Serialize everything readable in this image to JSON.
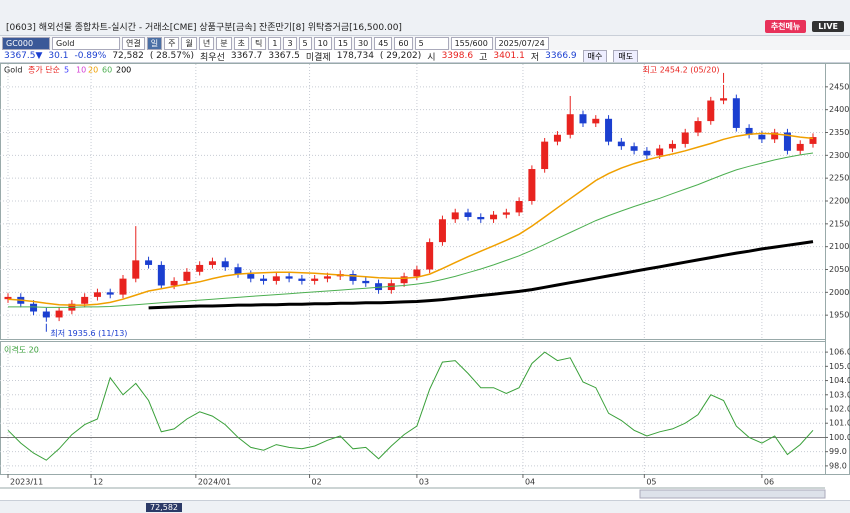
{
  "window": {
    "title": "[0603] 해외선물 종합차트-실시간 - 거래소[CME] 상품구분[금속] 잔존만기[8] 위탁증거금[16,500.00]",
    "menu_button": "추천메뉴",
    "live_button": "LIVE"
  },
  "toolbar": {
    "code": "GC000",
    "name": "Gold",
    "periods": [
      "연결",
      "일",
      "주",
      "월",
      "년",
      "분",
      "초",
      "틱"
    ],
    "intervals": [
      "1",
      "3",
      "5",
      "10",
      "15",
      "30",
      "45",
      "60"
    ],
    "count": "5",
    "range": "155/600",
    "date": "2025/07/24"
  },
  "quote": {
    "items": [
      "3367.5▼",
      "30.1",
      "-0.89%",
      "72,582",
      "( 28.57%)",
      "최우선",
      "3367.7",
      "3367.5",
      "미결제",
      "178,734",
      "( 29,202)",
      "시",
      "3398.6",
      "고",
      "3401.1",
      "저",
      "3366.9"
    ],
    "buttons": [
      "매수",
      "매도"
    ]
  },
  "status": {
    "volume": "72,582"
  },
  "chart_data": [
    {
      "type": "candlestick",
      "series_label": "Gold",
      "legend_label": "종가 단순",
      "legend_items": [
        {
          "name": "5",
          "color": "#3b3bff"
        },
        {
          "name": "10",
          "color": "#d43fd4"
        }
      ],
      "open": [
        1985,
        1990,
        1975,
        1958,
        1945,
        1960,
        1975,
        1990,
        2000,
        1995,
        2030,
        2070,
        2060,
        2015,
        2025,
        2045,
        2060,
        2068,
        2055,
        2040,
        2030,
        2025,
        2035,
        2030,
        2025,
        2030,
        2035,
        2040,
        2025,
        2020,
        2005,
        2020,
        2035,
        2050,
        2110,
        2160,
        2175,
        2165,
        2160,
        2170,
        2175,
        2200,
        2270,
        2330,
        2345,
        2390,
        2370,
        2380,
        2330,
        2320,
        2310,
        2300,
        2315,
        2325,
        2350,
        2375,
        2420,
        2425,
        2360,
        2345,
        2335,
        2350,
        2310,
        2325
      ],
      "high": [
        1998,
        1998,
        1983,
        1966,
        1968,
        1983,
        1998,
        2008,
        2008,
        2038,
        2145,
        2078,
        2068,
        2033,
        2053,
        2068,
        2076,
        2076,
        2063,
        2048,
        2038,
        2043,
        2043,
        2038,
        2038,
        2043,
        2048,
        2048,
        2033,
        2028,
        2028,
        2043,
        2058,
        2118,
        2168,
        2183,
        2183,
        2173,
        2178,
        2183,
        2208,
        2278,
        2338,
        2353,
        2430,
        2398,
        2388,
        2388,
        2338,
        2328,
        2318,
        2323,
        2333,
        2358,
        2383,
        2428,
        2454.2,
        2433,
        2368,
        2353,
        2358,
        2358,
        2333,
        2348
      ],
      "low": [
        1977,
        1967,
        1950,
        1935.6,
        1937,
        1952,
        1967,
        1982,
        1987,
        1987,
        2022,
        2052,
        2007,
        2007,
        2017,
        2037,
        2052,
        2047,
        2032,
        2022,
        2017,
        2017,
        2022,
        2017,
        2017,
        2022,
        2027,
        2017,
        2012,
        1997,
        1997,
        2012,
        2027,
        2042,
        2102,
        2152,
        2157,
        2152,
        2152,
        2162,
        2167,
        2192,
        2262,
        2322,
        2337,
        2362,
        2362,
        2322,
        2312,
        2302,
        2292,
        2292,
        2307,
        2317,
        2342,
        2367,
        2412,
        2352,
        2337,
        2327,
        2327,
        2302,
        2302,
        2317
      ],
      "close": [
        1990,
        1975,
        1958,
        1945,
        1960,
        1975,
        1990,
        2000,
        1995,
        2030,
        2070,
        2060,
        2015,
        2025,
        2045,
        2060,
        2068,
        2055,
        2040,
        2030,
        2025,
        2035,
        2030,
        2025,
        2030,
        2035,
        2040,
        2025,
        2020,
        2005,
        2020,
        2035,
        2050,
        2110,
        2160,
        2175,
        2165,
        2160,
        2170,
        2175,
        2200,
        2270,
        2330,
        2345,
        2390,
        2370,
        2380,
        2330,
        2320,
        2310,
        2300,
        2315,
        2325,
        2350,
        2375,
        2420,
        2425,
        2360,
        2345,
        2335,
        2350,
        2310,
        2325,
        2340
      ],
      "up_color": "#e8231f",
      "down_color": "#1b3fd0",
      "series": [
        {
          "name": "20",
          "color": "#f0a000",
          "width": 1.5,
          "values": [
            1985,
            1983,
            1980,
            1976,
            1973,
            1972,
            1972,
            1974,
            1978,
            1985,
            1994,
            2003,
            2008,
            2013,
            2018,
            2023,
            2030,
            2036,
            2040,
            2042,
            2043,
            2044,
            2044,
            2043,
            2042,
            2040,
            2038,
            2036,
            2034,
            2032,
            2031,
            2031,
            2033,
            2040,
            2052,
            2065,
            2078,
            2090,
            2102,
            2114,
            2127,
            2145,
            2165,
            2185,
            2205,
            2225,
            2245,
            2260,
            2272,
            2282,
            2290,
            2297,
            2303,
            2310,
            2318,
            2326,
            2335,
            2342,
            2346,
            2348,
            2347,
            2344,
            2340,
            2337
          ]
        },
        {
          "name": "60",
          "color": "#4caf50",
          "width": 1,
          "values": [
            1968,
            1968,
            1968,
            1967,
            1967,
            1967,
            1968,
            1968,
            1969,
            1971,
            1973,
            1975,
            1977,
            1979,
            1981,
            1983,
            1985,
            1987,
            1989,
            1991,
            1993,
            1995,
            1997,
            1999,
            2001,
            2003,
            2005,
            2007,
            2009,
            2011,
            2013,
            2015,
            2018,
            2022,
            2028,
            2035,
            2043,
            2051,
            2060,
            2070,
            2080,
            2092,
            2105,
            2118,
            2131,
            2144,
            2157,
            2168,
            2178,
            2188,
            2197,
            2206,
            2216,
            2226,
            2236,
            2247,
            2258,
            2268,
            2276,
            2283,
            2290,
            2296,
            2301,
            2305
          ]
        },
        {
          "name": "200",
          "color": "#000000",
          "width": 3,
          "values": [
            null,
            null,
            null,
            null,
            null,
            null,
            null,
            null,
            null,
            null,
            null,
            1966,
            1967,
            1968,
            1969,
            1970,
            1970,
            1971,
            1972,
            1972,
            1973,
            1973,
            1974,
            1974,
            1975,
            1975,
            1976,
            1976,
            1977,
            1977,
            1978,
            1979,
            1980,
            1982,
            1984,
            1987,
            1990,
            1993,
            1996,
            1999,
            2002,
            2006,
            2011,
            2016,
            2021,
            2026,
            2031,
            2036,
            2041,
            2046,
            2051,
            2056,
            2061,
            2066,
            2071,
            2076,
            2081,
            2086,
            2090,
            2095,
            2099,
            2103,
            2107,
            2111
          ]
        }
      ],
      "ylim": [
        1900,
        2500
      ],
      "yticks": [
        1950,
        2000,
        2050,
        2100,
        2150,
        2200,
        2250,
        2300,
        2350,
        2400,
        2450
      ],
      "xticks": [
        {
          "value": 0,
          "label": "2023/11"
        },
        {
          "value": 6.5,
          "label": "12"
        },
        {
          "value": 14.7,
          "label": "2024/01"
        },
        {
          "value": 23.6,
          "label": "02"
        },
        {
          "value": 32,
          "label": "03"
        },
        {
          "value": 40.3,
          "label": "04"
        },
        {
          "value": 49.8,
          "label": "05"
        },
        {
          "value": 59,
          "label": "06"
        }
      ],
      "grid": true,
      "annotations": [
        {
          "text": "최고 2454.2 (05/20)",
          "x": 56,
          "y": 2454.2
        },
        {
          "text": "최저 1935.6 (11/13)",
          "x": 3,
          "y": 1935.6
        }
      ]
    },
    {
      "type": "line",
      "title": "이격도 20",
      "color": "#3aa03a",
      "baseline": 100,
      "values": [
        100.5,
        99.6,
        98.9,
        98.4,
        99.2,
        100.2,
        100.9,
        101.3,
        104.2,
        103.0,
        103.8,
        102.6,
        100.4,
        100.6,
        101.3,
        101.8,
        101.5,
        100.9,
        100.0,
        99.3,
        99.1,
        99.5,
        99.3,
        99.2,
        99.4,
        99.8,
        100.1,
        99.2,
        99.3,
        98.5,
        99.4,
        100.2,
        100.8,
        103.4,
        105.3,
        105.4,
        104.5,
        103.5,
        103.5,
        103.1,
        103.5,
        105.2,
        106.0,
        105.4,
        105.6,
        103.9,
        103.5,
        101.7,
        101.2,
        100.5,
        100.1,
        100.4,
        100.6,
        101.0,
        101.6,
        103.0,
        102.6,
        100.8,
        100.0,
        99.6,
        100.1,
        98.8,
        99.5,
        100.5
      ],
      "ylim": [
        97.5,
        106.5
      ],
      "yticks": [
        {
          "value": 98,
          "label": "98.0"
        },
        {
          "value": 99,
          "label": "99.0"
        },
        {
          "value": 100,
          "label": "100.0"
        },
        {
          "value": 101,
          "label": "101.0"
        },
        {
          "value": 102,
          "label": "102.0"
        },
        {
          "value": 103,
          "label": "103.0"
        },
        {
          "value": 104,
          "label": "104.0"
        },
        {
          "value": 105,
          "label": "105.0"
        },
        {
          "value": 106,
          "label": "106.0"
        }
      ],
      "grid": true
    }
  ]
}
